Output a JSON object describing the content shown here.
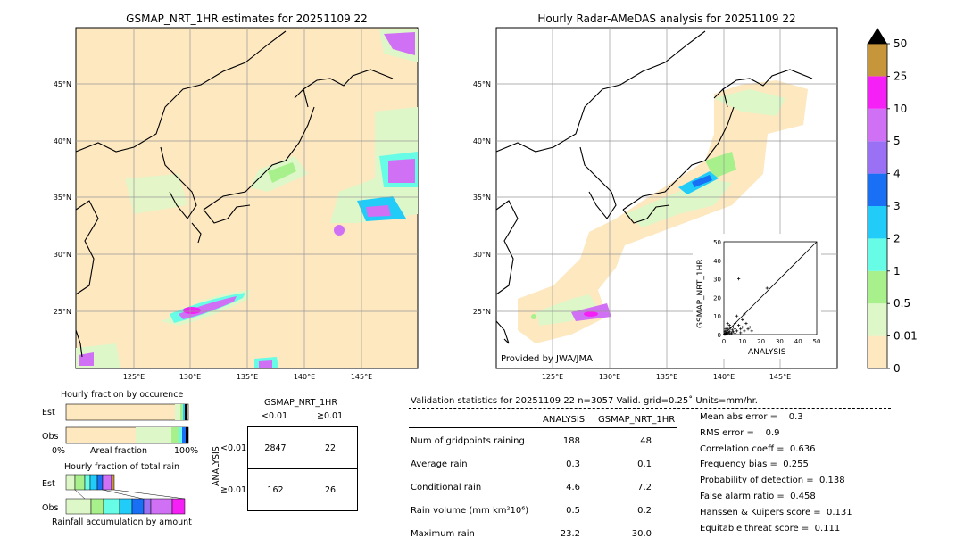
{
  "left_map": {
    "title": "GSMAP_NRT_1HR estimates for 20251109 22",
    "lat_labels": [
      "45°N",
      "40°N",
      "35°N",
      "30°N",
      "25°N"
    ],
    "lon_labels": [
      "125°E",
      "130°E",
      "135°E",
      "140°E",
      "145°E"
    ]
  },
  "right_map": {
    "title": "Hourly Radar-AMeDAS analysis for 20251109 22",
    "lat_labels": [
      "45°N",
      "40°N",
      "35°N",
      "30°N",
      "25°N"
    ],
    "lon_labels": [
      "125°E",
      "130°E",
      "135°E",
      "140°E",
      "145°E"
    ],
    "credit": "Provided by JWA/JMA"
  },
  "colorbar": {
    "labels": [
      "0",
      "0.01",
      "0.5",
      "1",
      "2",
      "3",
      "4",
      "5",
      "10",
      "25",
      "50"
    ],
    "colors": [
      "#fde8c0",
      "#ddf7c8",
      "#a8f08c",
      "#66fce6",
      "#22ccf8",
      "#1a70f5",
      "#9a70f5",
      "#d070f5",
      "#f520f5",
      "#c8963a"
    ],
    "extend_color": "#000000"
  },
  "chart_data": [
    {
      "type": "scatter",
      "title": "",
      "xlabel": "ANALYSIS",
      "ylabel": "GSMAP_NRT_1HR",
      "xlim": [
        0,
        50
      ],
      "ylim": [
        0,
        50
      ],
      "ticks": [
        "0",
        "10",
        "20",
        "30",
        "40",
        "50"
      ],
      "points": [
        [
          0.3,
          0.2
        ],
        [
          0.5,
          0.1
        ],
        [
          0.8,
          0.4
        ],
        [
          1,
          0.2
        ],
        [
          1.2,
          0.6
        ],
        [
          1.5,
          0.3
        ],
        [
          2,
          0.8
        ],
        [
          2.5,
          1.2
        ],
        [
          3,
          0.5
        ],
        [
          1,
          2
        ],
        [
          2,
          3
        ],
        [
          3,
          1.8
        ],
        [
          4,
          1
        ],
        [
          4.5,
          2.5
        ],
        [
          5,
          1.5
        ],
        [
          6,
          3
        ],
        [
          7,
          2
        ],
        [
          8,
          5
        ],
        [
          9,
          3
        ],
        [
          10,
          4
        ],
        [
          11,
          2
        ],
        [
          12,
          6
        ],
        [
          13,
          3
        ],
        [
          14,
          4
        ],
        [
          8,
          30
        ],
        [
          23.2,
          25
        ],
        [
          9,
          1
        ],
        [
          6,
          6
        ],
        [
          7,
          10
        ],
        [
          10,
          8
        ],
        [
          11,
          11
        ],
        [
          5,
          4
        ],
        [
          3,
          5
        ],
        [
          2,
          6
        ],
        [
          1,
          3
        ],
        [
          0.5,
          1.5
        ],
        [
          4,
          0.5
        ],
        [
          15,
          2
        ],
        [
          6,
          0.8
        ],
        [
          3.5,
          3.5
        ]
      ]
    },
    {
      "type": "bar",
      "title": "Hourly fraction by occurence",
      "categories": [
        "Est",
        "Obs"
      ],
      "xlabel": "Areal fraction",
      "x_tick_labels": [
        "0%",
        "100%"
      ]
    },
    {
      "type": "bar",
      "title": "Hourly fraction of total rain",
      "categories": [
        "Est",
        "Obs"
      ],
      "xlabel": "Rainfall accumulation by amount"
    }
  ],
  "contingency": {
    "title": "GSMAP_NRT_1HR",
    "col_labels": [
      "<0.01",
      "≧0.01"
    ],
    "row_labels": [
      "<0.01",
      "≧0.01"
    ],
    "side_label": "ANALYSIS",
    "values": [
      [
        "2847",
        "22"
      ],
      [
        "162",
        "26"
      ]
    ]
  },
  "validation": {
    "header": "Validation statistics for 20251109 22  n=3057 Valid. grid=0.25˚ Units=mm/hr.",
    "col_analysis": "ANALYSIS",
    "col_gsmap": "GSMAP_NRT_1HR",
    "rows": [
      {
        "label": "Num of gridpoints raining",
        "analysis": "188",
        "gsmap": "48"
      },
      {
        "label": "Average rain",
        "analysis": "0.3",
        "gsmap": "0.1"
      },
      {
        "label": "Conditional rain",
        "analysis": "4.6",
        "gsmap": "7.2"
      },
      {
        "label": "Rain volume (mm km²10⁶)",
        "analysis": "0.5",
        "gsmap": "0.2"
      },
      {
        "label": "Maximum rain",
        "analysis": "23.2",
        "gsmap": "30.0"
      }
    ],
    "scores": [
      "Mean abs error =    0.3",
      "RMS error =    0.9",
      "Correlation coeff =  0.636",
      "Frequency bias =  0.255",
      "Probability of detection =  0.138",
      "False alarm ratio =  0.458",
      "Hanssen & Kuipers score =  0.131",
      "Equitable threat score =  0.111"
    ]
  }
}
